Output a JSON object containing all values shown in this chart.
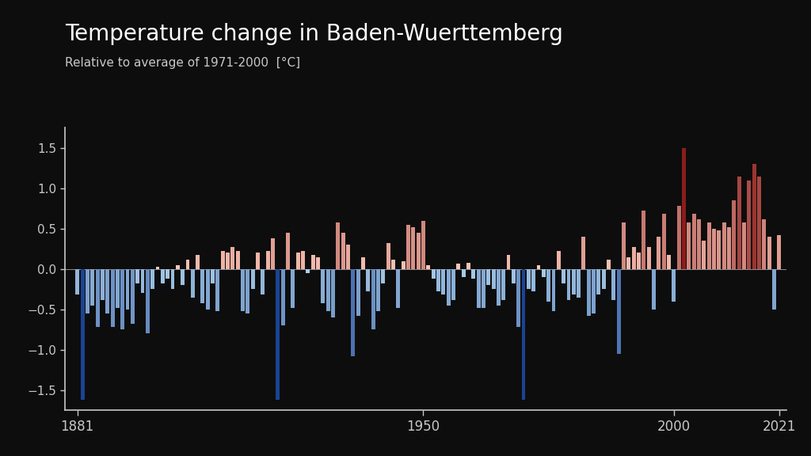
{
  "title": "Temperature change in Baden-Wuerttemberg",
  "subtitle": "Relative to average of 1971-2000  [°C]",
  "background_color": "#0d0d0d",
  "text_color": "#c8c8c8",
  "ylim": [
    -1.75,
    1.75
  ],
  "years": [
    1881,
    1882,
    1883,
    1884,
    1885,
    1886,
    1887,
    1888,
    1889,
    1890,
    1891,
    1892,
    1893,
    1894,
    1895,
    1896,
    1897,
    1898,
    1899,
    1900,
    1901,
    1902,
    1903,
    1904,
    1905,
    1906,
    1907,
    1908,
    1909,
    1910,
    1911,
    1912,
    1913,
    1914,
    1915,
    1916,
    1917,
    1918,
    1919,
    1920,
    1921,
    1922,
    1923,
    1924,
    1925,
    1926,
    1927,
    1928,
    1929,
    1930,
    1931,
    1932,
    1933,
    1934,
    1935,
    1936,
    1937,
    1938,
    1939,
    1940,
    1941,
    1942,
    1943,
    1944,
    1945,
    1946,
    1947,
    1948,
    1949,
    1950,
    1951,
    1952,
    1953,
    1954,
    1955,
    1956,
    1957,
    1958,
    1959,
    1960,
    1961,
    1962,
    1963,
    1964,
    1965,
    1966,
    1967,
    1968,
    1969,
    1970,
    1971,
    1972,
    1973,
    1974,
    1975,
    1976,
    1977,
    1978,
    1979,
    1980,
    1981,
    1982,
    1983,
    1984,
    1985,
    1986,
    1987,
    1988,
    1989,
    1990,
    1991,
    1992,
    1993,
    1994,
    1995,
    1996,
    1997,
    1998,
    1999,
    2000,
    2001,
    2002,
    2003,
    2004,
    2005,
    2006,
    2007,
    2008,
    2009,
    2010,
    2011,
    2012,
    2013,
    2014,
    2015,
    2016,
    2017,
    2018,
    2019,
    2020,
    2021
  ],
  "anomalies": [
    -0.32,
    -1.62,
    -0.55,
    -0.45,
    -0.72,
    -0.38,
    -0.55,
    -0.72,
    -0.48,
    -0.75,
    -0.5,
    -0.68,
    -0.18,
    -0.3,
    -0.8,
    -0.25,
    0.03,
    -0.18,
    -0.12,
    -0.25,
    0.05,
    -0.2,
    0.12,
    -0.35,
    0.17,
    -0.42,
    -0.5,
    -0.18,
    -0.52,
    0.22,
    0.2,
    0.27,
    0.22,
    -0.52,
    -0.55,
    -0.25,
    0.2,
    -0.32,
    0.22,
    0.38,
    -1.62,
    -0.7,
    0.45,
    -0.48,
    0.2,
    0.22,
    -0.05,
    0.17,
    0.15,
    -0.42,
    -0.52,
    -0.6,
    0.58,
    0.45,
    0.3,
    -1.08,
    -0.58,
    0.15,
    -0.28,
    -0.75,
    -0.52,
    -0.18,
    0.32,
    0.12,
    -0.48,
    0.1,
    0.55,
    0.52,
    0.45,
    0.6,
    0.05,
    -0.12,
    -0.28,
    -0.32,
    -0.45,
    -0.38,
    0.07,
    -0.1,
    0.08,
    -0.12,
    -0.48,
    -0.48,
    -0.2,
    -0.25,
    -0.45,
    -0.38,
    0.17,
    -0.18,
    -0.72,
    -1.62,
    -0.25,
    -0.28,
    0.05,
    -0.1,
    -0.4,
    -0.52,
    0.22,
    -0.18,
    -0.38,
    -0.32,
    -0.35,
    0.4,
    -0.58,
    -0.55,
    -0.32,
    -0.25,
    0.12,
    -0.38,
    -1.05,
    0.58,
    0.15,
    0.27,
    0.2,
    0.72,
    0.27,
    -0.5,
    0.4,
    0.68,
    0.17,
    -0.4,
    0.78,
    1.5,
    0.58,
    0.68,
    0.62,
    0.35,
    0.58,
    0.5,
    0.48,
    0.58,
    0.52,
    0.85,
    1.15,
    0.58,
    1.1,
    1.3,
    1.15,
    0.62,
    0.4,
    -0.5,
    0.42
  ]
}
